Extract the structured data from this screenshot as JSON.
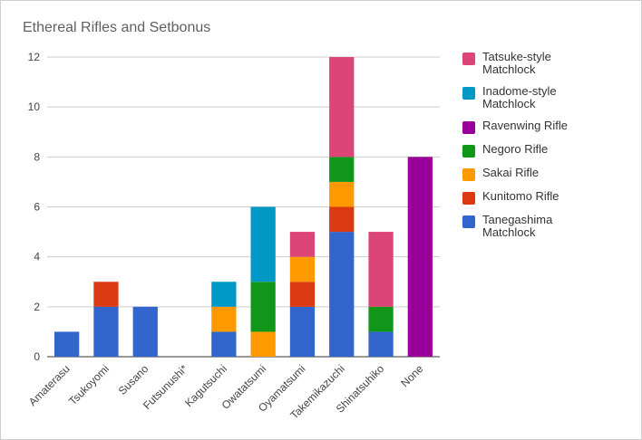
{
  "chart_data": {
    "type": "bar",
    "stacked": true,
    "title": "Ethereal Rifles and Setbonus",
    "xlabel": "",
    "ylabel": "",
    "ylim": [
      0,
      12
    ],
    "yticks": [
      0,
      2,
      4,
      6,
      8,
      10,
      12
    ],
    "grid": true,
    "legend_position": "right",
    "categories": [
      "Amaterasu",
      "Tsukoyomi",
      "Susano",
      "Futsunushi*",
      "Kagutsuchi",
      "Owatatsumi",
      "Oyamatsumi",
      "Takemikazuchi",
      "Shinatsuhiko",
      "None"
    ],
    "series": [
      {
        "name": "Tanegashima Matchlock",
        "color": "#3366cc",
        "values": [
          1,
          2,
          2,
          0,
          1,
          0,
          2,
          5,
          1,
          0
        ]
      },
      {
        "name": "Kunitomo Rifle",
        "color": "#dc3912",
        "values": [
          0,
          1,
          0,
          0,
          0,
          0,
          1,
          1,
          0,
          0
        ]
      },
      {
        "name": "Sakai Rifle",
        "color": "#ff9900",
        "values": [
          0,
          0,
          0,
          0,
          1,
          1,
          1,
          1,
          0,
          0
        ]
      },
      {
        "name": "Negoro Rifle",
        "color": "#109618",
        "values": [
          0,
          0,
          0,
          0,
          0,
          2,
          0,
          1,
          1,
          0
        ]
      },
      {
        "name": "Ravenwing Rifle",
        "color": "#990099",
        "values": [
          0,
          0,
          0,
          0,
          0,
          0,
          0,
          0,
          0,
          8
        ]
      },
      {
        "name": "Inadome-style Matchlock",
        "color": "#0099c6",
        "values": [
          0,
          0,
          0,
          0,
          1,
          3,
          0,
          0,
          0,
          0
        ]
      },
      {
        "name": "Tatsuke-style Matchlock",
        "color": "#dd4477",
        "values": [
          0,
          0,
          0,
          0,
          0,
          0,
          1,
          4,
          3,
          0
        ]
      }
    ],
    "legend_order": [
      "Tatsuke-style Matchlock",
      "Inadome-style Matchlock",
      "Ravenwing Rifle",
      "Negoro Rifle",
      "Sakai Rifle",
      "Kunitomo Rifle",
      "Tanegashima Matchlock"
    ]
  }
}
